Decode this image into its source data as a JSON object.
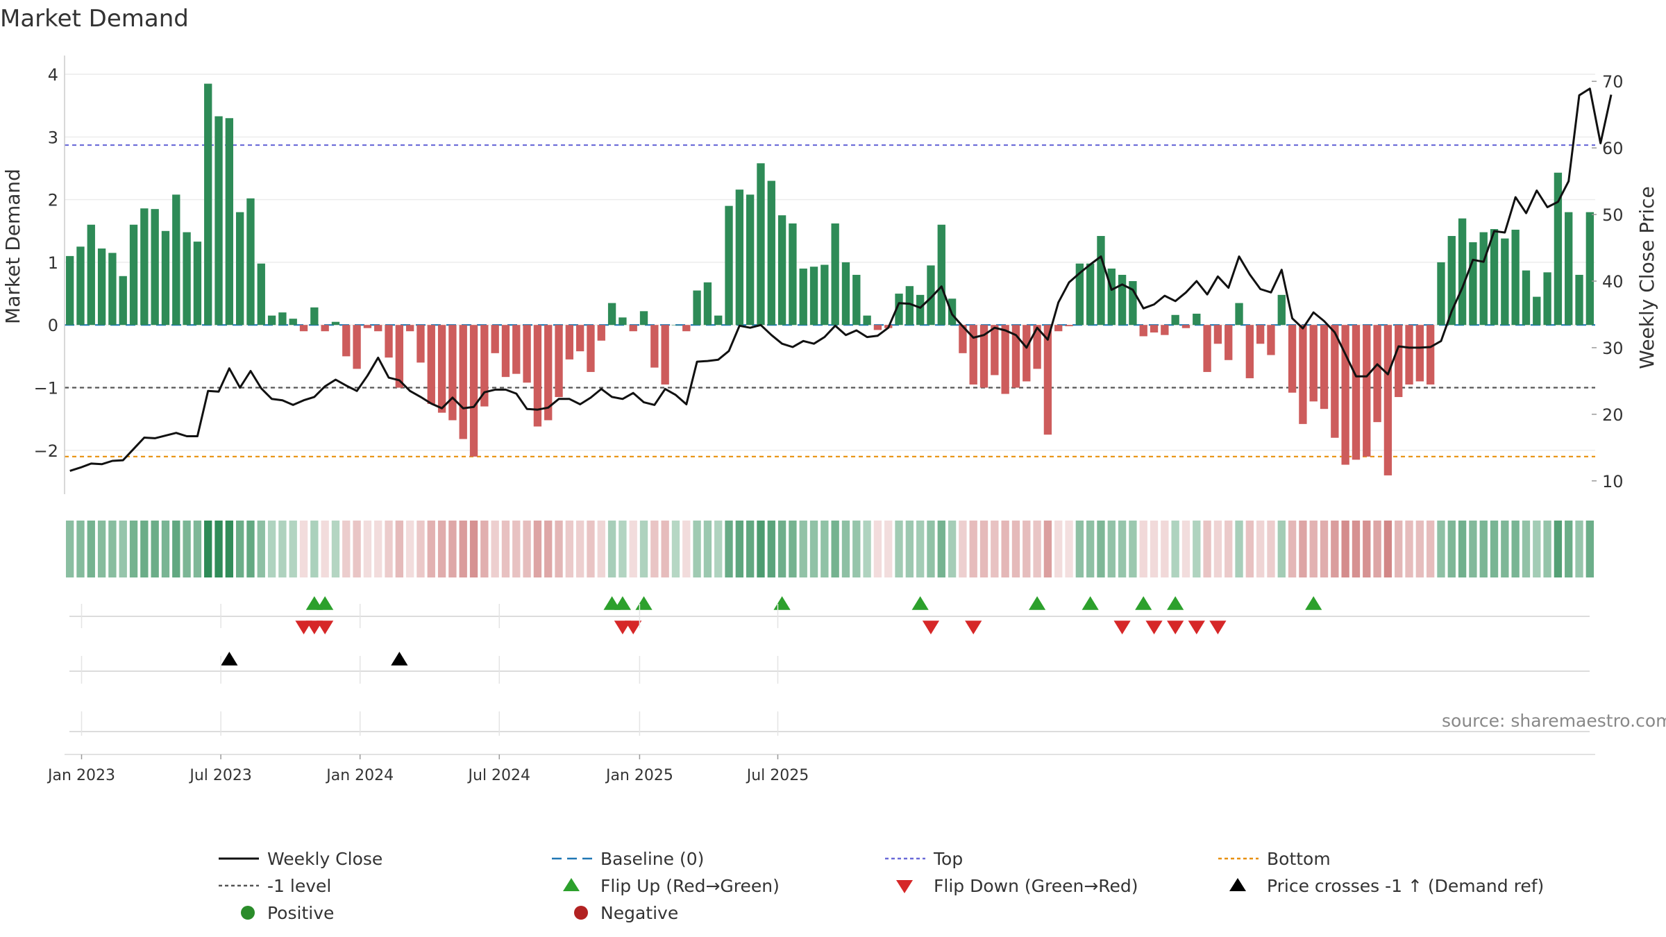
{
  "chart_data": {
    "type": "bar",
    "title": "Market Demand",
    "ylabel": "Market Demand",
    "y2label": "Weekly Close Price",
    "ylim": [
      -2.7,
      4.1
    ],
    "y2lim": [
      8.0,
      72.0
    ],
    "yticks": [
      {
        "v": 4,
        "label": "4"
      },
      {
        "v": 3,
        "label": "3"
      },
      {
        "v": 2,
        "label": "2"
      },
      {
        "v": 1,
        "label": "1"
      },
      {
        "v": 0,
        "label": "0"
      },
      {
        "v": -1,
        "label": "−1"
      },
      {
        "v": -2,
        "label": "−2"
      }
    ],
    "y2ticks": [
      {
        "v": 70,
        "label": "70"
      },
      {
        "v": 60,
        "label": "60"
      },
      {
        "v": 50,
        "label": "50"
      },
      {
        "v": 40,
        "label": "40"
      },
      {
        "v": 30,
        "label": "30"
      },
      {
        "v": 20,
        "label": "20"
      },
      {
        "v": 10,
        "label": "10"
      }
    ],
    "xticks": [
      {
        "i": 1.1,
        "label": "Jan 2023"
      },
      {
        "i": 14.2,
        "label": "Jul 2023"
      },
      {
        "i": 27.3,
        "label": "Jan 2024"
      },
      {
        "i": 40.4,
        "label": "Jul 2024"
      },
      {
        "i": 53.6,
        "label": "Jan 2025"
      },
      {
        "i": 66.6,
        "label": "Jul 2025"
      }
    ],
    "reference_lines": [
      {
        "name": "Top",
        "value": 2.87,
        "color": "#6a6ad8"
      },
      {
        "name": "-1 level",
        "value": -1,
        "color": "#555555"
      },
      {
        "name": "Bottom",
        "value": -2.1,
        "color": "#e8900c"
      },
      {
        "name": "Baseline (0)",
        "value": 0,
        "color": "#1f77b4"
      }
    ],
    "demand": [
      1.1,
      1.25,
      1.6,
      1.22,
      1.15,
      0.78,
      1.6,
      1.86,
      1.85,
      1.5,
      2.08,
      1.48,
      1.33,
      3.85,
      3.33,
      3.3,
      1.8,
      2.02,
      0.98,
      0.15,
      0.2,
      0.1,
      -0.1,
      0.28,
      -0.1,
      0.05,
      -0.5,
      -0.7,
      -0.05,
      -0.1,
      -0.52,
      -1.0,
      -0.1,
      -0.6,
      -1.26,
      -1.4,
      -1.52,
      -1.82,
      -2.1,
      -1.3,
      -0.45,
      -0.83,
      -0.78,
      -0.92,
      -1.62,
      -1.52,
      -1.15,
      -0.55,
      -0.42,
      -0.75,
      -0.25,
      0.35,
      0.12,
      -0.1,
      0.22,
      -0.68,
      -0.95,
      0.0,
      -0.1,
      0.55,
      0.68,
      0.15,
      1.9,
      2.16,
      2.08,
      2.58,
      2.3,
      1.75,
      1.62,
      0.9,
      0.93,
      0.96,
      1.62,
      1.0,
      0.8,
      0.15,
      -0.08,
      -0.05,
      0.5,
      0.62,
      0.48,
      0.95,
      1.6,
      0.42,
      -0.45,
      -0.95,
      -1.0,
      -0.8,
      -1.1,
      -1.0,
      -0.9,
      -0.7,
      -1.75,
      -0.1,
      -0.02,
      0.98,
      0.98,
      1.42,
      0.9,
      0.8,
      0.7,
      -0.18,
      -0.12,
      -0.16,
      0.16,
      -0.05,
      0.18,
      -0.75,
      -0.3,
      -0.56,
      0.35,
      -0.85,
      -0.3,
      -0.48,
      0.48,
      -1.08,
      -1.58,
      -1.22,
      -1.34,
      -1.8,
      -2.23,
      -2.15,
      -2.1,
      -1.55,
      -2.4,
      -1.15,
      -0.95,
      -0.9,
      -0.95,
      1.0,
      1.42,
      1.7,
      1.32,
      1.48,
      1.53,
      1.38,
      1.52,
      0.87,
      0.45,
      0.84,
      2.43,
      1.8,
      0.8,
      1.8
    ],
    "weekly_close": [
      11.5,
      12.0,
      12.6,
      12.5,
      13.0,
      13.1,
      14.8,
      16.5,
      16.4,
      16.8,
      17.2,
      16.7,
      16.7,
      23.5,
      23.4,
      26.9,
      24.0,
      26.5,
      23.9,
      22.3,
      22.1,
      21.4,
      22.1,
      22.6,
      24.2,
      25.2,
      24.3,
      23.5,
      25.8,
      28.5,
      25.5,
      25.1,
      23.5,
      22.6,
      21.6,
      20.9,
      22.5,
      20.9,
      21.1,
      23.3,
      23.7,
      23.7,
      23.1,
      20.8,
      20.7,
      21.0,
      22.3,
      22.3,
      21.5,
      22.5,
      23.8,
      22.6,
      22.3,
      23.2,
      21.8,
      21.4,
      23.8,
      22.9,
      21.5,
      27.9,
      28.0,
      28.2,
      29.5,
      33.3,
      33.0,
      33.4,
      31.9,
      30.6,
      30.1,
      31.0,
      30.6,
      31.6,
      33.3,
      31.9,
      32.6,
      31.6,
      31.8,
      33.0,
      36.7,
      36.6,
      36.0,
      37.5,
      39.2,
      35.0,
      33.2,
      31.5,
      31.9,
      33.0,
      32.6,
      31.9,
      30.0,
      33.0,
      31.2,
      36.8,
      39.8,
      41.2,
      42.5,
      43.7,
      38.7,
      39.5,
      38.7,
      35.9,
      36.5,
      37.8,
      37.0,
      38.3,
      40.0,
      38.0,
      40.7,
      39.0,
      43.7,
      41.0,
      38.8,
      38.3,
      41.7,
      34.4,
      32.9,
      35.3,
      34.0,
      32.3,
      29.0,
      25.7,
      25.7,
      27.5,
      26.0,
      30.2,
      30.0,
      30.0,
      30.1,
      31.0,
      35.5,
      39.0,
      43.2,
      42.9,
      47.5,
      47.3,
      52.6,
      50.2,
      53.6,
      51.1,
      51.9,
      55.0,
      67.9,
      68.9,
      60.7,
      68.0
    ],
    "flip_up": [
      23,
      24,
      51,
      52,
      54,
      80,
      91,
      96,
      101,
      104,
      67,
      117
    ],
    "flip_down": [
      22,
      23,
      24,
      52,
      53,
      81,
      85,
      99,
      102,
      104,
      106,
      108
    ],
    "price_crosses": [
      15,
      31
    ],
    "source": "source: sharemaestro.com",
    "legend": [
      {
        "label": "Weekly Close",
        "kind": "line",
        "color": "#111111"
      },
      {
        "label": "Baseline (0)",
        "kind": "dash",
        "color": "#1f77b4"
      },
      {
        "label": "Top",
        "kind": "dot",
        "color": "#6a6ad8"
      },
      {
        "label": "Bottom",
        "kind": "dot",
        "color": "#e8900c"
      },
      {
        "label": "-1 level",
        "kind": "dot",
        "color": "#555555"
      },
      {
        "label": "Flip Up (Red→Green)",
        "kind": "tri-up",
        "color": "#2ca02c"
      },
      {
        "label": "Flip Down (Green→Red)",
        "kind": "tri-down",
        "color": "#d62728"
      },
      {
        "label": "Price crosses -1 ↑ (Demand ref)",
        "kind": "tri-up",
        "color": "#000000"
      },
      {
        "label": "Positive",
        "kind": "circle",
        "color": "#2a8c2a"
      },
      {
        "label": "Negative",
        "kind": "circle",
        "color": "#b22222"
      }
    ],
    "colors": {
      "positive": "#2e8b57",
      "negative": "#cd5c5c",
      "price": "#111111",
      "grid": "#ececec",
      "axis": "#cccccc"
    }
  }
}
